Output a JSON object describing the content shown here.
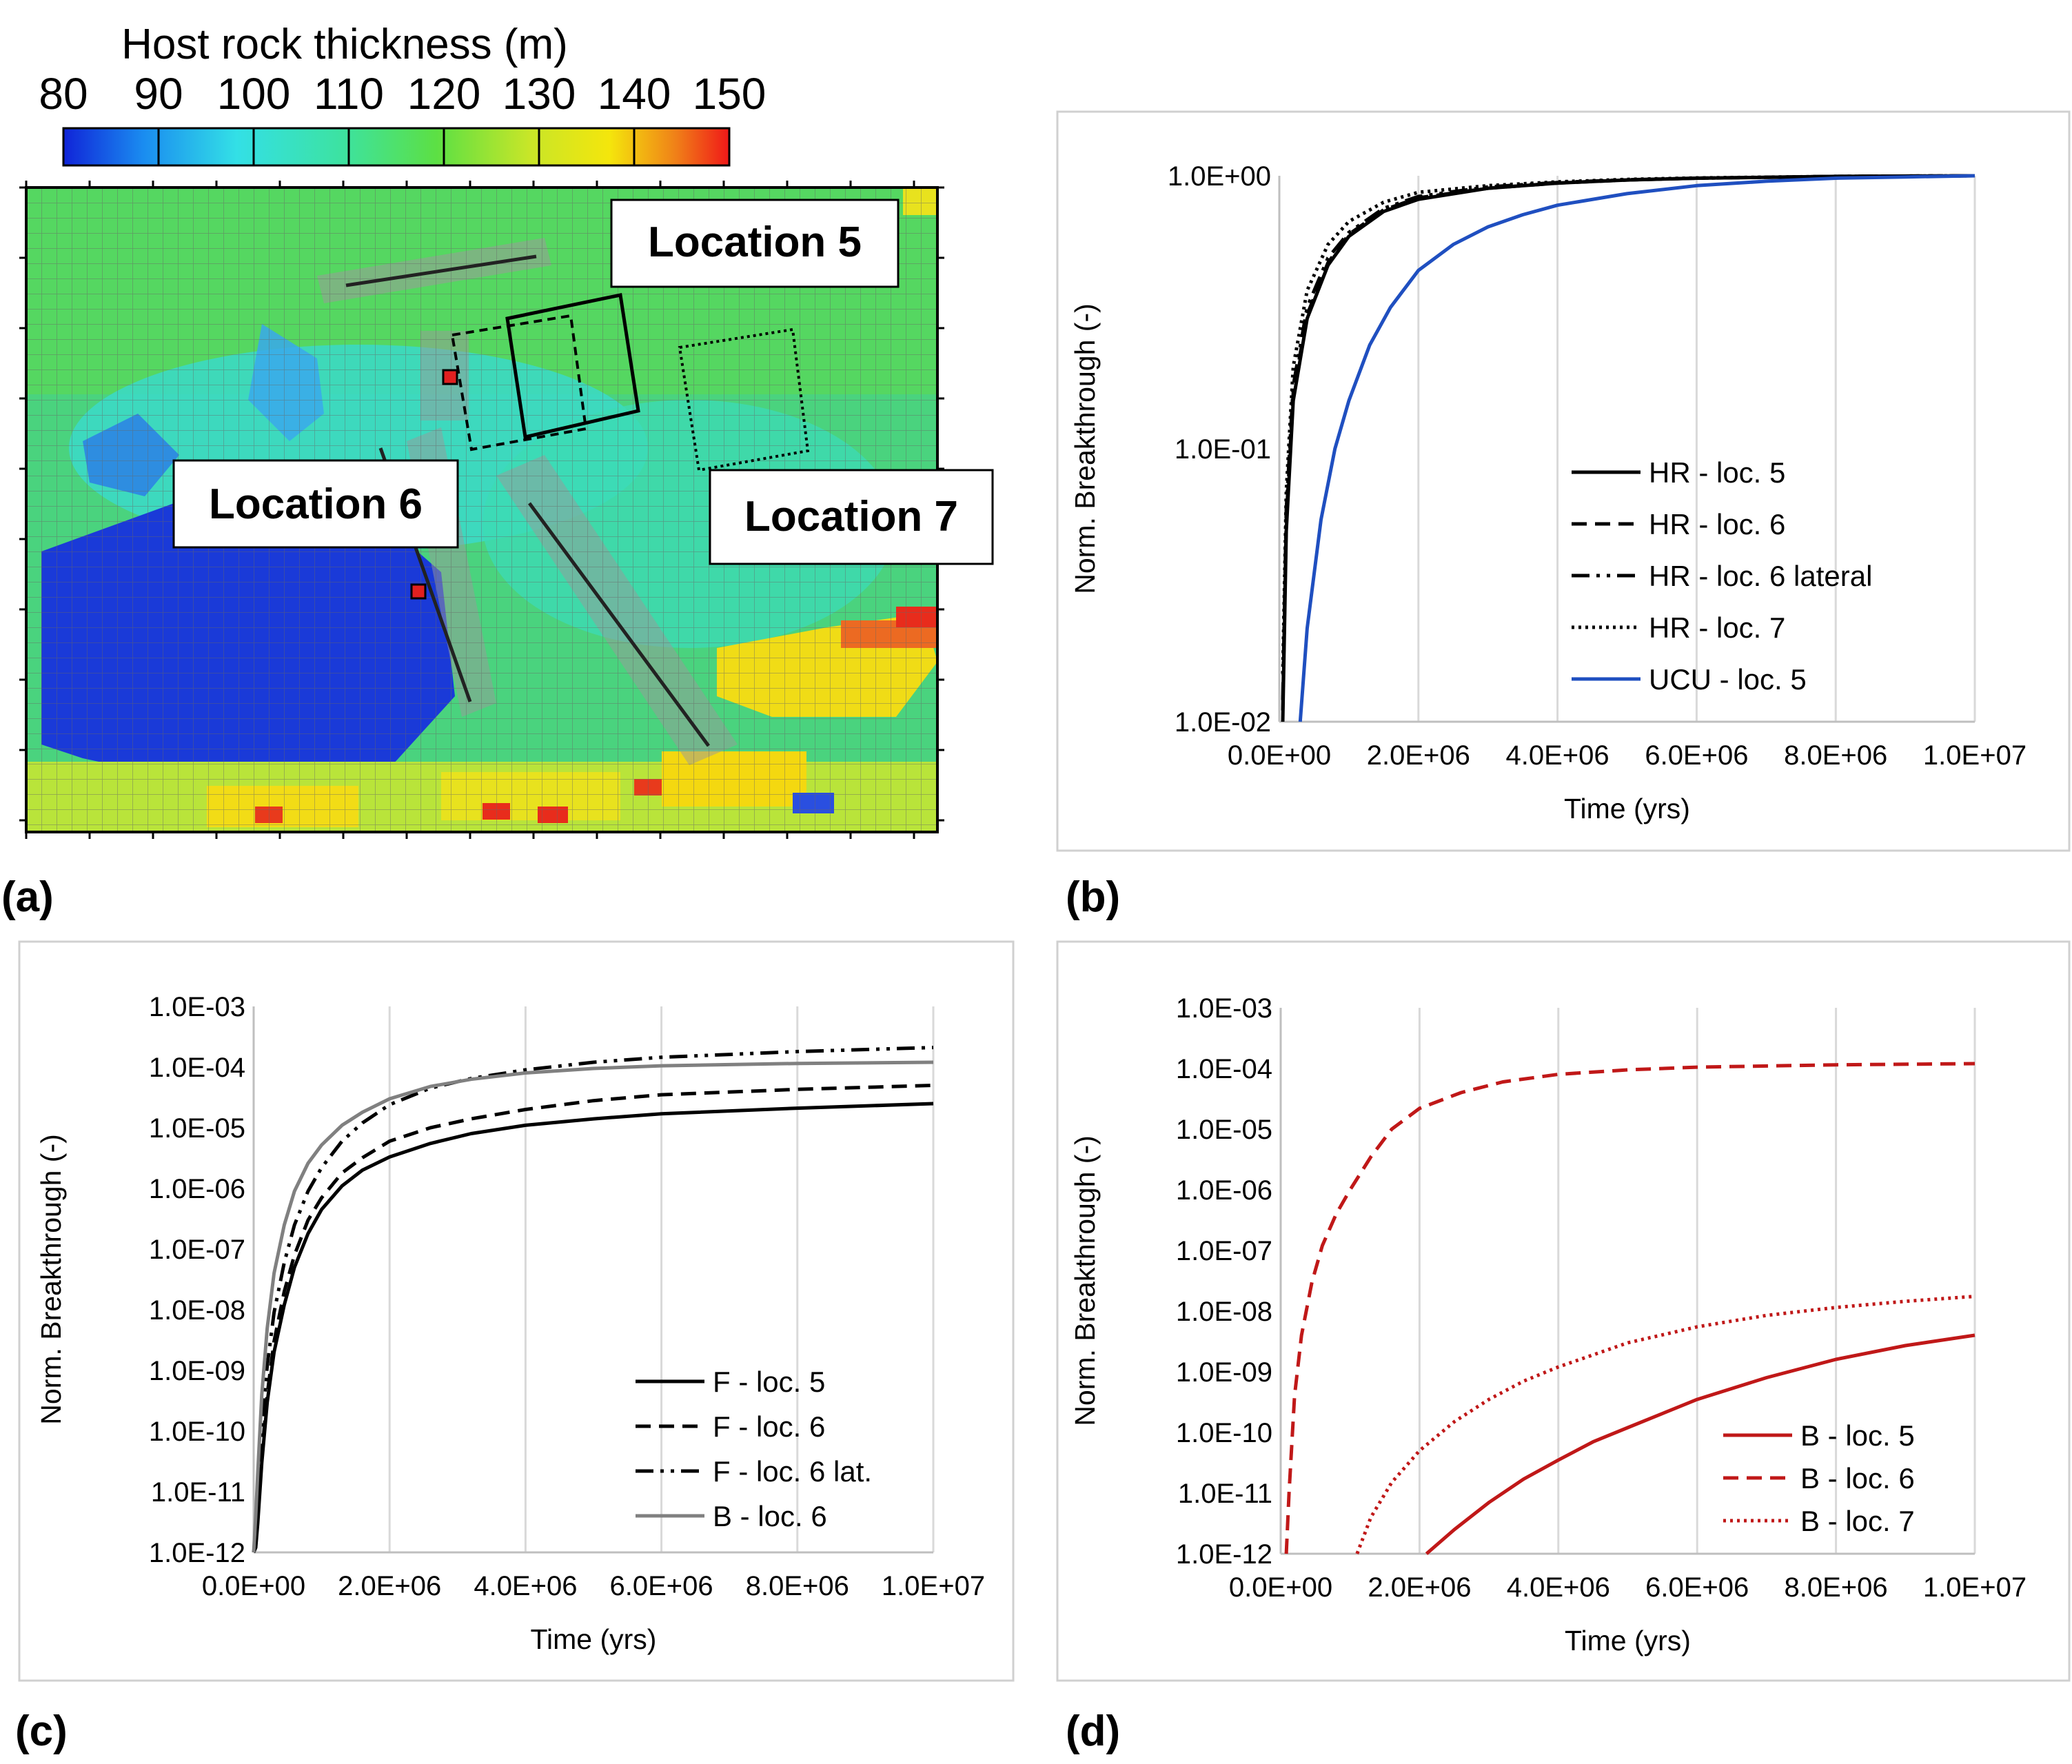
{
  "panel_labels": [
    "(a)",
    "(b)",
    "(c)",
    "(d)"
  ],
  "map": {
    "colorbar_title": "Host rock thickness (m)",
    "colorbar_ticks": [
      "80",
      "90",
      "100",
      "110",
      "120",
      "130",
      "140",
      "150"
    ],
    "colorbar_colors": [
      "#1024d8",
      "#1a8cf0",
      "#33e0e6",
      "#3de2a0",
      "#5ce044",
      "#c8e628",
      "#f4e60c",
      "#f08018",
      "#f01818"
    ],
    "location_labels": [
      "Location 5",
      "Location 6",
      "Location 7"
    ]
  },
  "chart_data": [
    {
      "panel": "(b)",
      "type": "line",
      "yscale": "log",
      "ylabel": "Norm. Breakthrough (-)",
      "xlabel": "Time (yrs)",
      "xlim": [
        0,
        10000000
      ],
      "ylim": [
        0.01,
        1
      ],
      "x_ticks": [
        "0.0E+00",
        "2.0E+06",
        "4.0E+06",
        "6.0E+06",
        "8.0E+06",
        "1.0E+07"
      ],
      "y_ticks": [
        "1.0E+00",
        "1.0E-01",
        "1.0E-02"
      ],
      "legend_position": "center-right",
      "series": [
        {
          "name": "HR - loc. 5",
          "color": "#000000",
          "dash": "solid",
          "x": [
            50000,
            100000,
            200000,
            400000,
            700000,
            1000000,
            1500000,
            2000000,
            3000000,
            4000000,
            5000000,
            6000000,
            8000000,
            10000000
          ],
          "y": [
            0.01,
            0.05,
            0.15,
            0.3,
            0.47,
            0.6,
            0.74,
            0.82,
            0.9,
            0.94,
            0.965,
            0.98,
            0.995,
            1.0
          ]
        },
        {
          "name": "HR - loc. 6",
          "color": "#000000",
          "dash": "dashed",
          "x": [
            50000,
            100000,
            200000,
            400000,
            700000,
            1000000,
            1500000,
            2000000,
            3000000,
            4000000,
            5000000,
            6000000,
            8000000,
            10000000
          ],
          "y": [
            0.011,
            0.055,
            0.16,
            0.31,
            0.48,
            0.61,
            0.75,
            0.83,
            0.9,
            0.94,
            0.965,
            0.98,
            0.995,
            1.0
          ]
        },
        {
          "name": "HR - loc. 6 lateral",
          "color": "#000000",
          "dash": "dashdotdot",
          "x": [
            50000,
            100000,
            200000,
            400000,
            700000,
            1000000,
            1500000,
            2000000,
            3000000,
            4000000,
            5000000,
            6000000,
            8000000,
            10000000
          ],
          "y": [
            0.012,
            0.06,
            0.17,
            0.33,
            0.5,
            0.62,
            0.76,
            0.84,
            0.91,
            0.945,
            0.967,
            0.98,
            0.995,
            1.0
          ]
        },
        {
          "name": "HR - loc. 7",
          "color": "#000000",
          "dash": "dotted",
          "x": [
            50000,
            100000,
            200000,
            400000,
            700000,
            1000000,
            1500000,
            2000000,
            3000000,
            4000000,
            5000000,
            6000000,
            8000000,
            10000000
          ],
          "y": [
            0.015,
            0.07,
            0.2,
            0.38,
            0.56,
            0.68,
            0.8,
            0.87,
            0.92,
            0.95,
            0.97,
            0.982,
            0.995,
            1.0
          ]
        },
        {
          "name": "UCU - loc. 5",
          "color": "#1f4fc0",
          "dash": "solid",
          "x": [
            300000,
            400000,
            600000,
            800000,
            1000000,
            1300000,
            1600000,
            2000000,
            2500000,
            3000000,
            3500000,
            4000000,
            5000000,
            6000000,
            7000000,
            8000000,
            9000000,
            10000000
          ],
          "y": [
            0.01,
            0.022,
            0.055,
            0.1,
            0.15,
            0.24,
            0.33,
            0.45,
            0.56,
            0.65,
            0.72,
            0.78,
            0.86,
            0.92,
            0.955,
            0.98,
            0.99,
            1.0
          ]
        }
      ]
    },
    {
      "panel": "(c)",
      "type": "line",
      "yscale": "log",
      "ylabel": "Norm. Breakthrough (-)",
      "xlabel": "Time (yrs)",
      "xlim": [
        0,
        10000000
      ],
      "ylim": [
        1e-12,
        0.001
      ],
      "x_ticks": [
        "0.0E+00",
        "2.0E+06",
        "4.0E+06",
        "6.0E+06",
        "8.0E+06",
        "1.0E+07"
      ],
      "y_ticks": [
        "1.0E-03",
        "1.0E-04",
        "1.0E-05",
        "1.0E-06",
        "1.0E-07",
        "1.0E-08",
        "1.0E-09",
        "1.0E-10",
        "1.0E-11",
        "1.0E-12"
      ],
      "legend_position": "lower-right",
      "series": [
        {
          "name": "F - loc. 5",
          "color": "#000000",
          "dash": "solid",
          "x": [
            0,
            30000,
            60000,
            120000,
            200000,
            300000,
            450000,
            600000,
            800000,
            1000000,
            1300000,
            1600000,
            2000000,
            2600000,
            3200000,
            4000000,
            5000000,
            6000000,
            8000000,
            10000000
          ],
          "y": [
            1e-12,
            1.2e-12,
            3e-12,
            3e-11,
            3e-10,
            2e-09,
            1.2e-08,
            5e-08,
            1.8e-07,
            4.5e-07,
            1.1e-06,
            2e-06,
            3.3e-06,
            5.5e-06,
            8e-06,
            1.1e-05,
            1.4e-05,
            1.7e-05,
            2.1e-05,
            2.5e-05
          ]
        },
        {
          "name": "F - loc. 6",
          "color": "#000000",
          "dash": "dashed",
          "x": [
            0,
            30000,
            60000,
            120000,
            200000,
            300000,
            450000,
            600000,
            800000,
            1000000,
            1300000,
            1600000,
            2000000,
            2600000,
            3200000,
            4000000,
            5000000,
            6000000,
            8000000,
            10000000
          ],
          "y": [
            1e-12,
            1.5e-12,
            4e-12,
            4e-11,
            4e-10,
            3e-09,
            2e-08,
            8e-08,
            3e-07,
            7e-07,
            1.8e-06,
            3.2e-06,
            6e-06,
            1e-05,
            1.4e-05,
            2e-05,
            2.8e-05,
            3.5e-05,
            4.3e-05,
            5e-05
          ]
        },
        {
          "name": "F - loc. 6 lat.",
          "color": "#000000",
          "dash": "dashdotdot",
          "x": [
            0,
            30000,
            60000,
            120000,
            200000,
            300000,
            450000,
            600000,
            800000,
            1000000,
            1300000,
            1600000,
            2000000,
            2600000,
            3200000,
            4000000,
            5000000,
            6000000,
            8000000,
            10000000
          ],
          "y": [
            1e-12,
            2e-12,
            8e-12,
            1e-10,
            1.2e-09,
            9e-09,
            6e-08,
            2.5e-07,
            9e-07,
            2.2e-06,
            6e-06,
            1.2e-05,
            2.4e-05,
            4.5e-05,
            6.5e-05,
            9e-05,
            0.00012,
            0.000145,
            0.00018,
            0.00021
          ]
        },
        {
          "name": "B - loc. 6",
          "color": "#808080",
          "dash": "solid",
          "x": [
            0,
            30000,
            60000,
            120000,
            200000,
            300000,
            450000,
            600000,
            800000,
            1000000,
            1300000,
            1600000,
            2000000,
            2600000,
            3200000,
            4000000,
            5000000,
            6000000,
            8000000,
            10000000
          ],
          "y": [
            1e-12,
            4e-12,
            2e-11,
            4e-10,
            5e-09,
            4e-08,
            2.5e-07,
            9e-07,
            2.6e-06,
            5.2e-06,
            1.1e-05,
            1.8e-05,
            3e-05,
            4.8e-05,
            6.3e-05,
            8e-05,
            9.5e-05,
            0.000105,
            0.000115,
            0.00012
          ]
        }
      ]
    },
    {
      "panel": "(d)",
      "type": "line",
      "yscale": "log",
      "ylabel": "Norm. Breakthrough (-)",
      "xlabel": "Time (yrs)",
      "xlim": [
        0,
        10000000
      ],
      "ylim": [
        1e-12,
        0.001
      ],
      "x_ticks": [
        "0.0E+00",
        "2.0E+06",
        "4.0E+06",
        "6.0E+06",
        "8.0E+06",
        "1.0E+07"
      ],
      "y_ticks": [
        "1.0E-03",
        "1.0E-04",
        "1.0E-05",
        "1.0E-06",
        "1.0E-07",
        "1.0E-08",
        "1.0E-09",
        "1.0E-10",
        "1.0E-11",
        "1.0E-12"
      ],
      "legend_position": "lower-right",
      "series": [
        {
          "name": "B - loc. 5",
          "color": "#c01818",
          "dash": "solid",
          "x": [
            2100000,
            2500000,
            3000000,
            3500000,
            4000000,
            4500000,
            5000000,
            6000000,
            7000000,
            8000000,
            9000000,
            10000000
          ],
          "y": [
            1e-12,
            2.5e-12,
            7e-12,
            1.7e-11,
            3.5e-11,
            7e-11,
            1.2e-10,
            3.5e-10,
            8e-10,
            1.6e-09,
            2.7e-09,
            4e-09
          ]
        },
        {
          "name": "B - loc. 6",
          "color": "#c01818",
          "dash": "dashed",
          "x": [
            80000,
            120000,
            200000,
            300000,
            450000,
            600000,
            800000,
            1000000,
            1300000,
            1600000,
            2000000,
            2600000,
            3200000,
            4000000,
            5000000,
            6000000,
            8000000,
            10000000
          ],
          "y": [
            1e-12,
            1e-11,
            4e-10,
            4e-09,
            3e-08,
            1.2e-07,
            4e-07,
            1e-06,
            3.5e-06,
            1e-05,
            2.2e-05,
            4e-05,
            6e-05,
            8e-05,
            9.5e-05,
            0.000105,
            0.000115,
            0.00012
          ]
        },
        {
          "name": "B - loc. 7",
          "color": "#c01818",
          "dash": "dotted",
          "x": [
            1100000,
            1300000,
            1600000,
            2000000,
            2500000,
            3000000,
            3500000,
            4000000,
            5000000,
            6000000,
            7000000,
            8000000,
            9000000,
            10000000
          ],
          "y": [
            1e-12,
            4e-12,
            1.5e-11,
            5e-11,
            1.5e-10,
            3.5e-10,
            7e-10,
            1.2e-09,
            3e-09,
            5.5e-09,
            8.5e-09,
            1.15e-08,
            1.45e-08,
            1.75e-08
          ]
        }
      ]
    }
  ]
}
